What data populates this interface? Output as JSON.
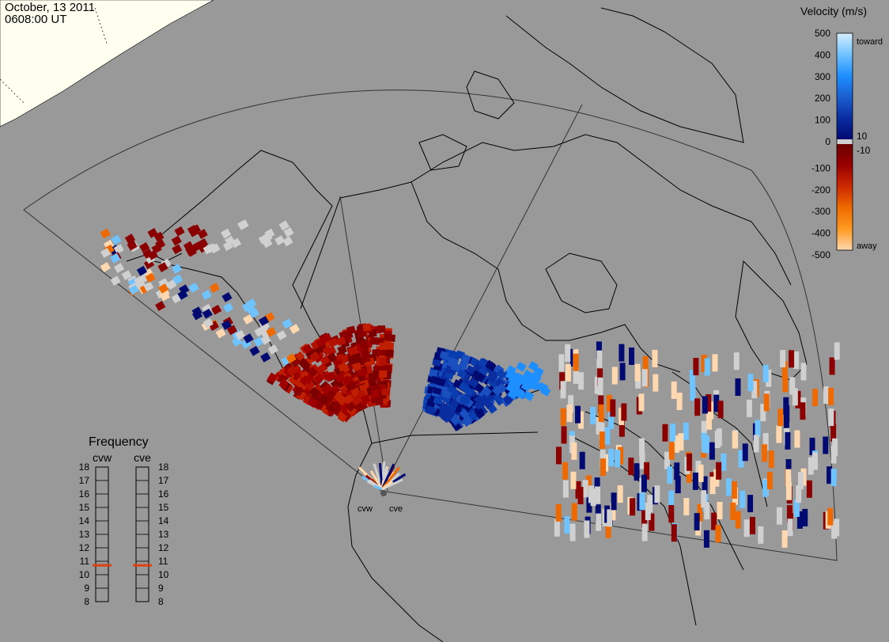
{
  "header": {
    "date": "October, 13 2011",
    "time": "0608:00 UT"
  },
  "colorbar": {
    "title": "Velocity (m/s)",
    "ticks": [
      "500",
      "400",
      "300",
      "200",
      "100",
      "0",
      "-100",
      "-200",
      "-300",
      "-400",
      "-500"
    ],
    "toward_label": "toward",
    "away_label": "away",
    "inner_pos": "10",
    "inner_neg": "-10",
    "stops": [
      {
        "v": 500,
        "color": "#d8eeff"
      },
      {
        "v": 400,
        "color": "#6fc3ff"
      },
      {
        "v": 300,
        "color": "#1e8fff"
      },
      {
        "v": 200,
        "color": "#1a5fd0"
      },
      {
        "v": 100,
        "color": "#0a2da0"
      },
      {
        "v": 10,
        "color": "#000a70"
      },
      {
        "v": -10,
        "color": "#6a0000"
      },
      {
        "v": -100,
        "color": "#9a0000"
      },
      {
        "v": -200,
        "color": "#cc2a00"
      },
      {
        "v": -300,
        "color": "#ee6a00"
      },
      {
        "v": -400,
        "color": "#ff9a20"
      },
      {
        "v": -500,
        "color": "#ffd8b0"
      }
    ]
  },
  "frequency": {
    "title": "Frequency",
    "radars": [
      {
        "name": "cvw",
        "value": 10.7
      },
      {
        "name": "cve",
        "value": 10.7
      }
    ],
    "ticks": [
      "18",
      "17",
      "16",
      "15",
      "14",
      "13",
      "12",
      "11",
      "10",
      "9",
      "8"
    ]
  },
  "radar_sites": [
    {
      "name": "cvw"
    },
    {
      "name": "cve"
    }
  ],
  "colors": {
    "background": "#999999",
    "land_outline": "#000000",
    "sky_land": "#fffff0",
    "ground_scatter": "#d0d0d0",
    "freq_marker": "#e04010"
  }
}
